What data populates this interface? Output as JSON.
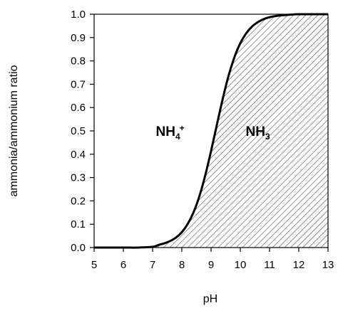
{
  "chart_data": {
    "type": "area",
    "xlabel": "pH",
    "ylabel": "ammonia/ammonium ratio",
    "xlim": [
      5,
      13
    ],
    "ylim": [
      0,
      1
    ],
    "x_ticks": [
      "5",
      "6",
      "7",
      "8",
      "9",
      "10",
      "11",
      "12",
      "13"
    ],
    "y_ticks": [
      "0.0",
      "0.1",
      "0.2",
      "0.3",
      "0.4",
      "0.5",
      "0.6",
      "0.7",
      "0.8",
      "0.9",
      "1.0"
    ],
    "grid": false,
    "fill": "hatched (right of curve)",
    "series": [
      {
        "x": [
          5,
          6,
          6.5,
          7,
          7.2,
          7.4,
          7.6,
          7.8,
          8.0,
          8.2,
          8.4,
          8.6,
          8.8,
          9.0,
          9.2,
          9.4,
          9.6,
          9.8,
          10.0,
          10.2,
          10.4,
          10.6,
          10.8,
          11.0,
          11.2,
          11.4,
          11.6,
          11.8,
          12,
          13
        ],
        "y": [
          0.0,
          0.0,
          0.0,
          0.003,
          0.011,
          0.018,
          0.028,
          0.043,
          0.066,
          0.101,
          0.151,
          0.22,
          0.309,
          0.414,
          0.527,
          0.638,
          0.737,
          0.816,
          0.876,
          0.918,
          0.947,
          0.966,
          0.979,
          0.987,
          0.992,
          0.995,
          0.997,
          0.999,
          1.0,
          1.0
        ]
      }
    ],
    "annotations": [
      {
        "text": "NH",
        "sub": "4",
        "sup": "+",
        "x": 7.6,
        "y": 0.5
      },
      {
        "text": "NH",
        "sub": "3",
        "x": 10.6,
        "y": 0.5
      }
    ],
    "colors": {
      "curve": "#000000",
      "hatch": "#000000",
      "axis": "#000000"
    }
  }
}
